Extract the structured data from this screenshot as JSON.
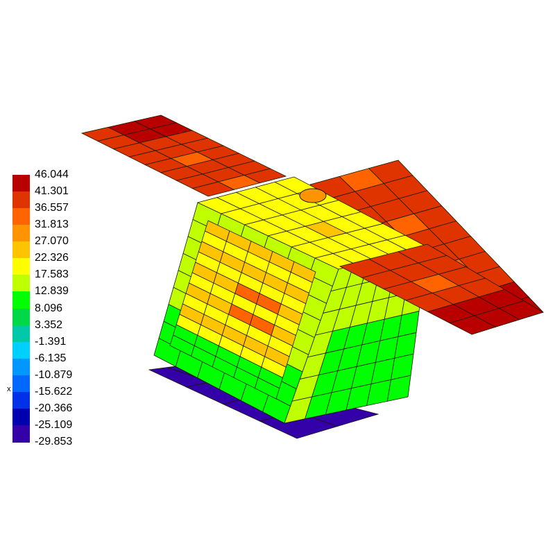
{
  "legend": {
    "labels": [
      "46.044",
      "41.301",
      "36.557",
      "31.813",
      "27.070",
      "22.326",
      "17.583",
      "12.839",
      "8.096",
      "3.352",
      "-1.391",
      "-6.135",
      "-10.879",
      "-15.622",
      "-20.366",
      "-25.109",
      "-29.853"
    ],
    "colors": [
      "#b80000",
      "#e03400",
      "#ff6400",
      "#ff9400",
      "#ffc400",
      "#ffff00",
      "#c0ff00",
      "#00ff00",
      "#00d848",
      "#00c8a8",
      "#00d0ff",
      "#0098ff",
      "#0068ff",
      "#0030e8",
      "#0000b0",
      "#3400a8"
    ]
  },
  "axis_label": "x"
}
